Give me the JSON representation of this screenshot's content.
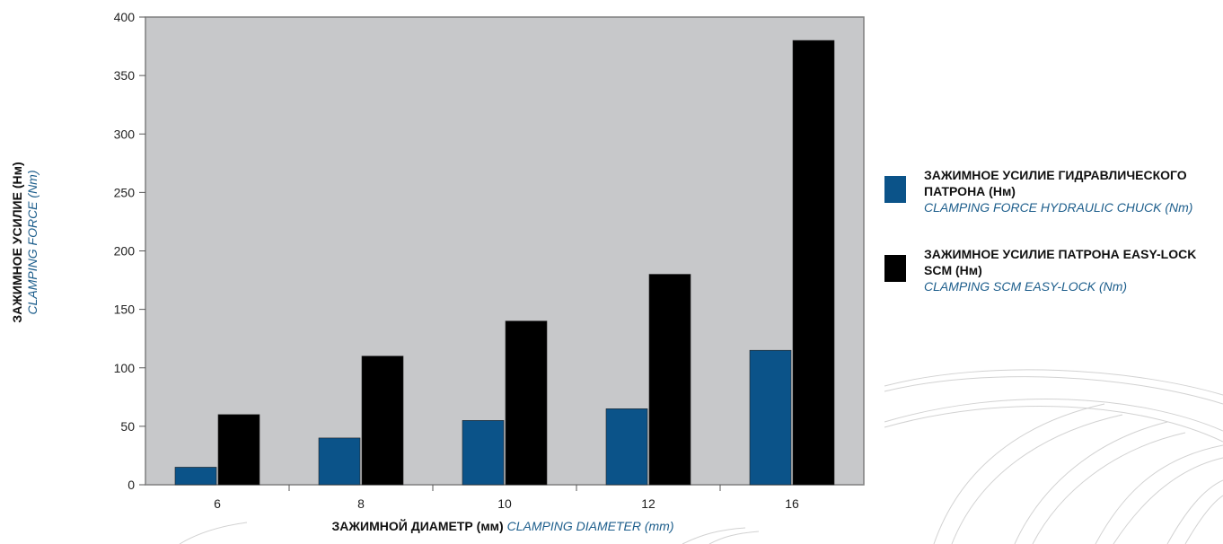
{
  "colors": {
    "plot_background": "#c7c8ca",
    "series_hydraulic": "#0b5389",
    "series_easylock": "#000000",
    "accent_text": "#1d5e8c"
  },
  "chart_data": {
    "type": "bar",
    "categories": [
      "6",
      "8",
      "10",
      "12",
      "16"
    ],
    "series": [
      {
        "name_ru": "ЗАЖИМНОЕ УСИЛИЕ ГИДРАВЛИЧЕСКОГО ПАТРОНА (Нм)",
        "name_en": "CLAMPING FORCE HYDRAULIC CHUCK (Nm)",
        "color": "#0b5389",
        "values": [
          15,
          40,
          55,
          65,
          115
        ]
      },
      {
        "name_ru": "ЗАЖИМНОЕ УСИЛИЕ ПАТРОНА EASY-LOCK SCM (Нм)",
        "name_en": "CLAMPING SCM EASY-LOCK (Nm)",
        "color": "#000000",
        "values": [
          60,
          110,
          140,
          180,
          380
        ]
      }
    ],
    "yticks": [
      "0",
      "50",
      "100",
      "150",
      "200",
      "250",
      "300",
      "350",
      "400"
    ],
    "ylim": [
      0,
      400
    ],
    "xlabel_ru": "ЗАЖИМНОЙ ДИАМЕТР (мм)",
    "xlabel_en": "CLAMPING DIAMETER (mm)",
    "ylabel_ru": "ЗАЖИМНОЕ УСИЛИЕ (Нм)",
    "ylabel_en": "CLAMPING FORCE (Nm)",
    "legend_position": "right",
    "grid": false
  }
}
